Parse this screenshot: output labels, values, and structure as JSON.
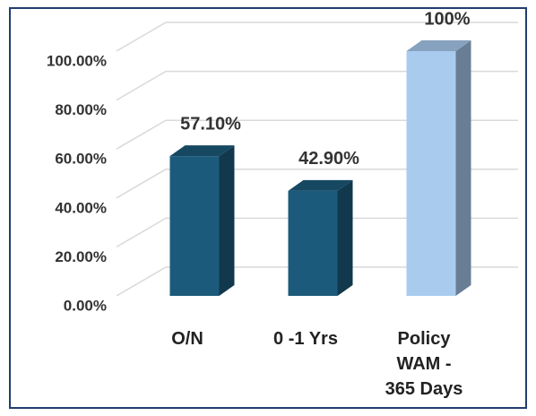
{
  "chart_data": {
    "type": "bar3d",
    "categories": [
      "O/N",
      "0 -1 Yrs",
      "Policy\nWAM -\n365 Days"
    ],
    "values": [
      57.1,
      42.9,
      100
    ],
    "value_labels": [
      "57.10%",
      "42.90%",
      "100%"
    ],
    "colors": [
      "#1b5a7b",
      "#1b5a7b",
      "#a9cbee"
    ],
    "ylim": [
      0,
      100
    ],
    "yticks": [
      {
        "value": 0,
        "label": "0.00%"
      },
      {
        "value": 20,
        "label": "20.00%"
      },
      {
        "value": 40,
        "label": "40.00%"
      },
      {
        "value": 60,
        "label": "60.00%"
      },
      {
        "value": 80,
        "label": "80.00%"
      },
      {
        "value": 100,
        "label": "100.00%"
      }
    ],
    "grid": true
  }
}
